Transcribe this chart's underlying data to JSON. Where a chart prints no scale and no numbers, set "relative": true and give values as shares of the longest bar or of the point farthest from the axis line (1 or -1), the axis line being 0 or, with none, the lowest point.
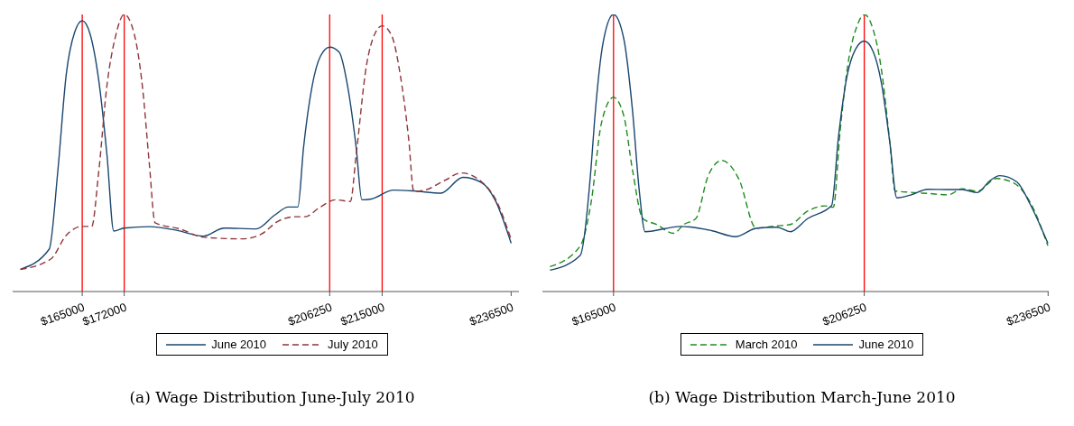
{
  "chart_data": [
    {
      "type": "line",
      "title": "(a)  Wage Distribution June-July 2010",
      "relative": true,
      "xlim": [
        153400,
        237800
      ],
      "xticks": [
        {
          "value": 165000,
          "label": "$165000"
        },
        {
          "value": 172000,
          "label": "$172000"
        },
        {
          "value": 206250,
          "label": "$206250"
        },
        {
          "value": 215000,
          "label": "$215000"
        },
        {
          "value": 236500,
          "label": "$236500"
        }
      ],
      "legend": "bottom",
      "marker": "none",
      "ref_lines": [
        {
          "axis": "x",
          "value": 165000,
          "color": "#ff0000"
        },
        {
          "axis": "x",
          "value": 172000,
          "color": "#ff0000"
        },
        {
          "axis": "x",
          "value": 206250,
          "color": "#ff0000"
        },
        {
          "axis": "x",
          "value": 215000,
          "color": "#ff0000"
        }
      ],
      "series": [
        {
          "name": "June 2010",
          "color": "#1a476f",
          "line_style": "solid",
          "x": [
            154700,
            159500,
            160930,
            162340,
            163760,
            165000,
            166300,
            167710,
            169130,
            170260,
            171950,
            176190,
            180710,
            185230,
            188620,
            193990,
            197100,
            199360,
            200940,
            201900,
            203310,
            204730,
            206250,
            207830,
            209250,
            210660,
            211620,
            213200,
            216880,
            220270,
            224790,
            228460,
            231570,
            233830,
            236500
          ],
          "values": [
            0.08,
            0.153,
            0.434,
            0.784,
            0.937,
            0.977,
            0.93,
            0.769,
            0.492,
            0.218,
            0.229,
            0.234,
            0.221,
            0.2,
            0.229,
            0.226,
            0.276,
            0.305,
            0.305,
            0.521,
            0.74,
            0.85,
            0.882,
            0.864,
            0.74,
            0.521,
            0.331,
            0.334,
            0.366,
            0.363,
            0.355,
            0.412,
            0.393,
            0.33,
            0.174
          ]
        },
        {
          "name": "July 2010",
          "color": "#90353b",
          "line_style": "dashed",
          "x": [
            154700,
            159800,
            162340,
            165000,
            166580,
            167710,
            169130,
            170540,
            172000,
            173650,
            175060,
            176190,
            177150,
            181280,
            185230,
            191730,
            194840,
            197660,
            200490,
            202180,
            204440,
            207270,
            209700,
            210660,
            212360,
            213770,
            215000,
            216590,
            218000,
            219420,
            220270,
            221960,
            225350,
            228180,
            231570,
            233830,
            236500
          ],
          "values": [
            0.08,
            0.118,
            0.203,
            0.235,
            0.235,
            0.423,
            0.745,
            0.92,
            1,
            0.931,
            0.735,
            0.46,
            0.248,
            0.226,
            0.196,
            0.19,
            0.207,
            0.254,
            0.27,
            0.27,
            0.301,
            0.331,
            0.325,
            0.492,
            0.813,
            0.93,
            0.959,
            0.923,
            0.784,
            0.55,
            0.361,
            0.365,
            0.4,
            0.428,
            0.396,
            0.336,
            0.188
          ]
        }
      ]
    },
    {
      "type": "line",
      "title": "(b)  Wage Distribution March-June 2010",
      "relative": true,
      "xlim": [
        153300,
        236600
      ],
      "xticks": [
        {
          "value": 165000,
          "label": "$165000"
        },
        {
          "value": 206250,
          "label": "$206250"
        },
        {
          "value": 236500,
          "label": "$236500"
        }
      ],
      "legend": "bottom",
      "marker": "none",
      "ref_lines": [
        {
          "axis": "x",
          "value": 165000,
          "color": "#ff0000"
        },
        {
          "axis": "x",
          "value": 206250,
          "color": "#ff0000"
        }
      ],
      "series": [
        {
          "name": "March 2010",
          "color": "#1e8c1e",
          "line_style": "dashed",
          "x": [
            154550,
            159520,
            161330,
            163020,
            165000,
            166690,
            168110,
            169800,
            172060,
            174890,
            176580,
            178560,
            180540,
            182800,
            185620,
            188450,
            191840,
            194100,
            196920,
            199750,
            201160,
            202290,
            203700,
            205110,
            206250,
            207660,
            209070,
            210480,
            211330,
            213870,
            216690,
            220080,
            222340,
            224880,
            227990,
            230810,
            233640,
            236460
          ],
          "values": [
            0.09,
            0.164,
            0.324,
            0.609,
            0.701,
            0.634,
            0.44,
            0.264,
            0.242,
            0.21,
            0.242,
            0.264,
            0.416,
            0.473,
            0.406,
            0.229,
            0.237,
            0.242,
            0.29,
            0.309,
            0.304,
            0.582,
            0.839,
            0.961,
            1,
            0.949,
            0.802,
            0.534,
            0.363,
            0.358,
            0.354,
            0.349,
            0.371,
            0.362,
            0.408,
            0.392,
            0.318,
            0.165
          ]
        },
        {
          "name": "June 2010",
          "color": "#1a476f",
          "line_style": "solid",
          "x": [
            154550,
            159520,
            161330,
            161890,
            163300,
            165000,
            166690,
            168110,
            169240,
            170200,
            176020,
            181100,
            185060,
            188450,
            191840,
            194100,
            196920,
            200880,
            202010,
            203420,
            204830,
            206250,
            207660,
            209070,
            210480,
            211610,
            213870,
            216690,
            220080,
            222340,
            224880,
            226860,
            228560,
            231380,
            233640,
            236460
          ],
          "values": [
            0.077,
            0.13,
            0.454,
            0.619,
            0.9,
            1,
            0.912,
            0.656,
            0.363,
            0.216,
            0.235,
            0.22,
            0.198,
            0.228,
            0.232,
            0.216,
            0.263,
            0.31,
            0.558,
            0.778,
            0.875,
            0.904,
            0.869,
            0.753,
            0.534,
            0.338,
            0.348,
            0.369,
            0.368,
            0.368,
            0.357,
            0.399,
            0.418,
            0.395,
            0.311,
            0.174
          ]
        }
      ]
    }
  ]
}
